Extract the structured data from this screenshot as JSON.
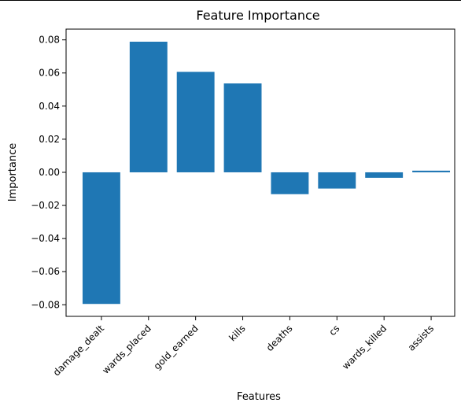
{
  "chart_data": {
    "type": "bar",
    "title": "Feature Importance",
    "xlabel": "Features",
    "ylabel": "Importance",
    "categories": [
      "damage_dealt",
      "wards_placed",
      "gold_earned",
      "kills",
      "deaths",
      "cs",
      "wards_killed",
      "assists"
    ],
    "values": [
      -0.0795,
      0.0789,
      0.0607,
      0.0537,
      -0.0132,
      -0.0098,
      -0.0033,
      0.001
    ],
    "ylim": [
      -0.087,
      0.0865
    ],
    "yticks": [
      -0.08,
      -0.06,
      -0.04,
      -0.02,
      0.0,
      0.02,
      0.04,
      0.06,
      0.08
    ],
    "ytick_labels": [
      "−0.08",
      "−0.06",
      "−0.04",
      "−0.02",
      "0.00",
      "0.02",
      "0.04",
      "0.06",
      "0.08"
    ],
    "bar_color": "#1f77b4",
    "grid": false,
    "legend": "none"
  }
}
